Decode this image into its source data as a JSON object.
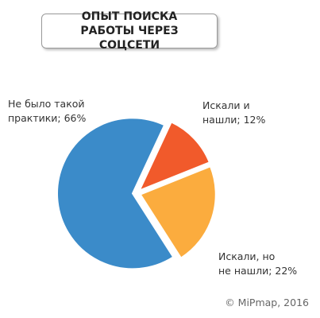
{
  "chart_data": {
    "type": "pie",
    "title": "ОПЫТ ПОИСКА РАБОТЫ ЧЕРЕЗ СОЦСЕТИ",
    "categories": [
      "Искали и нашли",
      "Искали, но не нашли",
      "Не было такой практики"
    ],
    "values": [
      12,
      22,
      66
    ],
    "value_labels": [
      [
        "Искали и",
        "нашли; 12%"
      ],
      [
        "Искали, но",
        "не нашли; 22%"
      ],
      [
        "Не было такой",
        "практики; 66%"
      ]
    ],
    "colors": [
      "#f15a2b",
      "#fbac3e",
      "#3b8bc9"
    ],
    "source": "© MiPmap, 2016"
  }
}
